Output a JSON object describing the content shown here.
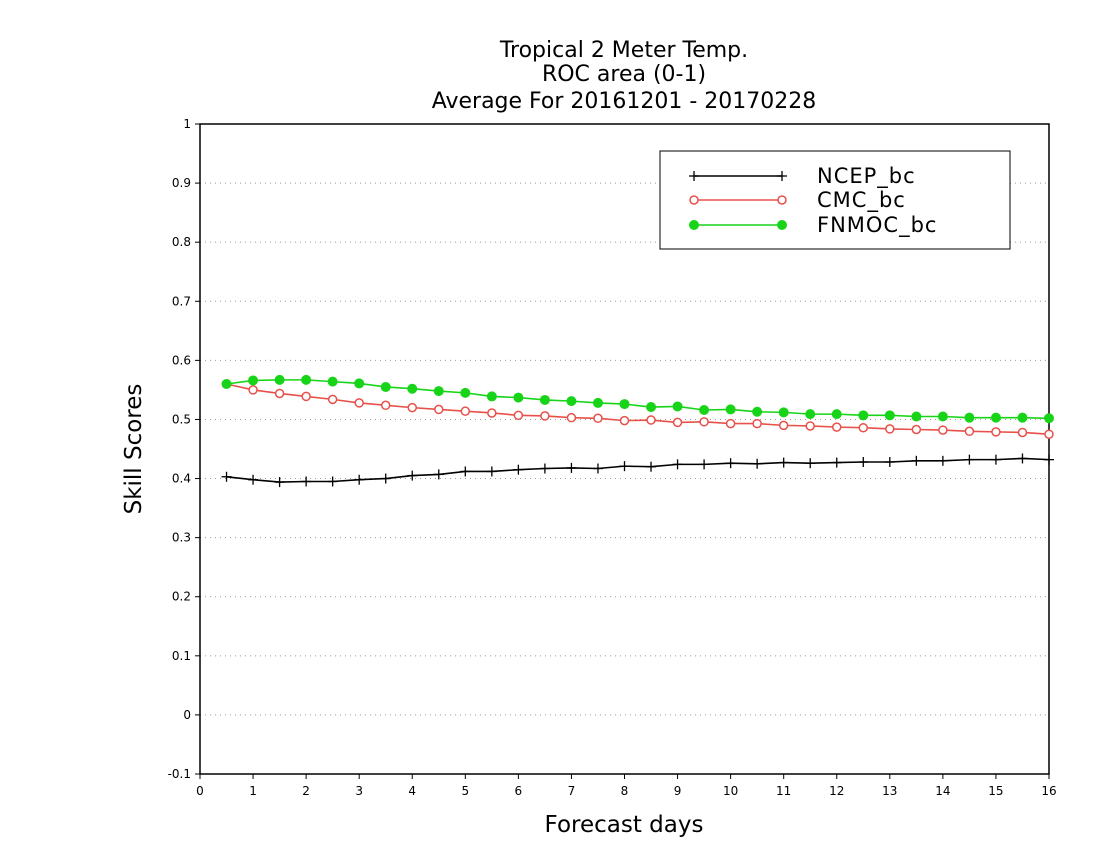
{
  "chart_data": {
    "type": "line",
    "title": [
      "Tropical 2 Meter Temp.",
      "ROC area (0-1)",
      "Average For 20161201 - 20170228"
    ],
    "xlabel": "Forecast days",
    "ylabel": "Skill Scores",
    "xlim": [
      0,
      16
    ],
    "ylim": [
      -0.1,
      1
    ],
    "xticks": [
      "0",
      "1",
      "2",
      "3",
      "4",
      "5",
      "6",
      "7",
      "8",
      "9",
      "10",
      "11",
      "12",
      "13",
      "14",
      "15",
      "16"
    ],
    "yticks": [
      "-0.1",
      "0",
      "0.1",
      "0.2",
      "0.3",
      "0.4",
      "0.5",
      "0.6",
      "0.7",
      "0.8",
      "0.9",
      "1"
    ],
    "grid": "horizontal dotted",
    "legend_position": "top-right",
    "x": [
      0.5,
      1,
      1.5,
      2,
      2.5,
      3,
      3.5,
      4,
      4.5,
      5,
      5.5,
      6,
      6.5,
      7,
      7.5,
      8,
      8.5,
      9,
      9.5,
      10,
      10.5,
      11,
      11.5,
      12,
      12.5,
      13,
      13.5,
      14,
      14.5,
      15,
      15.5,
      16
    ],
    "series": [
      {
        "name": "NCEP_bc",
        "color": "#000000",
        "marker": "plus",
        "values": [
          0.403,
          0.398,
          0.394,
          0.395,
          0.395,
          0.398,
          0.4,
          0.405,
          0.407,
          0.412,
          0.412,
          0.415,
          0.417,
          0.418,
          0.417,
          0.421,
          0.42,
          0.424,
          0.424,
          0.426,
          0.425,
          0.427,
          0.426,
          0.427,
          0.428,
          0.428,
          0.43,
          0.43,
          0.432,
          0.432,
          0.434,
          0.432
        ]
      },
      {
        "name": "CMC_bc",
        "color": "#e8504a",
        "marker": "open-circle",
        "values": [
          0.56,
          0.55,
          0.544,
          0.539,
          0.534,
          0.528,
          0.524,
          0.52,
          0.517,
          0.514,
          0.511,
          0.507,
          0.506,
          0.503,
          0.502,
          0.498,
          0.499,
          0.495,
          0.496,
          0.493,
          0.493,
          0.49,
          0.489,
          0.487,
          0.486,
          0.484,
          0.483,
          0.482,
          0.48,
          0.479,
          0.478,
          0.475
        ]
      },
      {
        "name": "FNMOC_bc",
        "color": "#18d418",
        "marker": "filled-circle",
        "values": [
          0.56,
          0.566,
          0.567,
          0.567,
          0.564,
          0.561,
          0.555,
          0.552,
          0.548,
          0.545,
          0.539,
          0.537,
          0.533,
          0.531,
          0.528,
          0.526,
          0.521,
          0.522,
          0.516,
          0.517,
          0.513,
          0.512,
          0.509,
          0.509,
          0.507,
          0.507,
          0.505,
          0.505,
          0.503,
          0.503,
          0.503,
          0.502
        ]
      }
    ]
  }
}
